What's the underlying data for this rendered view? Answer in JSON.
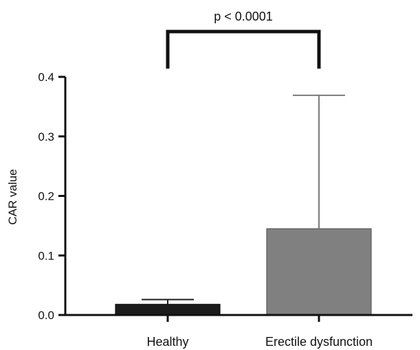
{
  "chart_data": {
    "type": "bar",
    "title": "",
    "xlabel": "",
    "ylabel": "CAR value",
    "ylim": [
      0,
      0.4
    ],
    "yticks": [
      "0.0",
      "0.1",
      "0.2",
      "0.3",
      "0.4"
    ],
    "categories": [
      "Healthy",
      "Erectile dysfunction"
    ],
    "values": [
      0.018,
      0.145
    ],
    "error_upper": [
      0.026,
      0.369
    ],
    "bar_colors": [
      "#1c1c1c",
      "#808080"
    ],
    "annotation": "p < 0.0001",
    "grid": false
  }
}
